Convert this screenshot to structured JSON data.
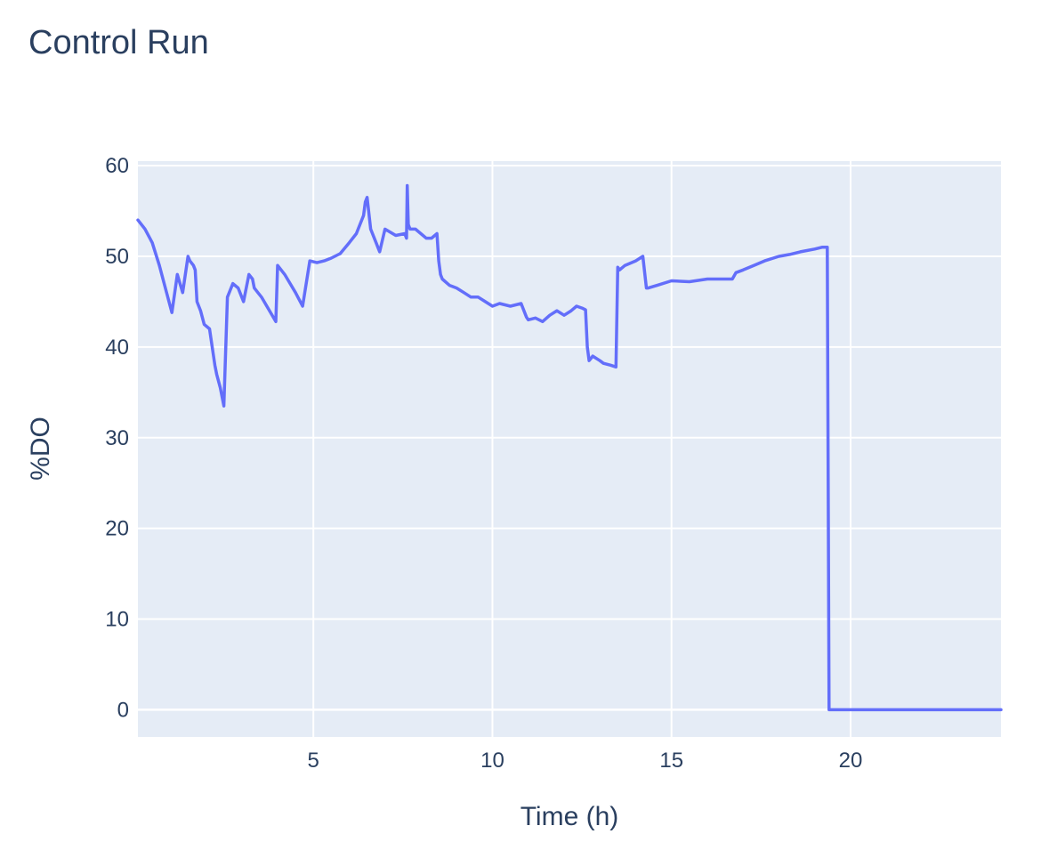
{
  "chart_data": {
    "type": "line",
    "title": "Control Run",
    "xlabel": "Time (h)",
    "ylabel": "%DO",
    "xlim": [
      0.1,
      24.2
    ],
    "ylim": [
      -3,
      60.5
    ],
    "x_ticks": [
      5,
      10,
      15,
      20
    ],
    "y_ticks": [
      0,
      10,
      20,
      30,
      40,
      50,
      60
    ],
    "grid": true,
    "legend": "none",
    "colors": {
      "line": "#636efa",
      "plot_bg": "#e5ecf6",
      "grid": "#ffffff",
      "text": "#2a3f5f"
    },
    "series": [
      {
        "x": [
          0.1,
          0.3,
          0.5,
          0.7,
          0.9,
          1.05,
          1.2,
          1.35,
          1.5,
          1.55,
          1.65,
          1.7,
          1.75,
          1.85,
          1.95,
          2.1,
          2.25,
          2.3,
          2.4,
          2.5,
          2.6,
          2.75,
          2.9,
          2.95,
          3.05,
          3.2,
          3.3,
          3.35,
          3.45,
          3.55,
          3.7,
          3.85,
          3.95,
          4.0,
          4.1,
          4.2,
          4.35,
          4.5,
          4.7,
          4.9,
          5.1,
          5.3,
          5.5,
          5.75,
          6.0,
          6.2,
          6.4,
          6.45,
          6.5,
          6.6,
          6.75,
          6.8,
          6.85,
          7.0,
          7.3,
          7.55,
          7.6,
          7.62,
          7.65,
          7.7,
          7.85,
          8.0,
          8.15,
          8.3,
          8.45,
          8.5,
          8.55,
          8.6,
          8.8,
          9.0,
          9.2,
          9.4,
          9.6,
          9.8,
          10.0,
          10.2,
          10.5,
          10.8,
          10.95,
          11.0,
          11.2,
          11.4,
          11.6,
          11.8,
          12.0,
          12.2,
          12.35,
          12.5,
          12.6,
          12.65,
          12.7,
          12.8,
          13.0,
          13.1,
          13.3,
          13.45,
          13.5,
          13.55,
          13.7,
          14.0,
          14.2,
          14.3,
          14.35,
          14.6,
          15.0,
          15.5,
          16.0,
          16.5,
          16.7,
          16.8,
          17.0,
          17.3,
          17.6,
          18.0,
          18.3,
          18.6,
          19.0,
          19.2,
          19.35,
          19.4,
          24.2
        ],
        "y": [
          54,
          53,
          51.5,
          49,
          46,
          43.8,
          48,
          46,
          50,
          49.5,
          49,
          48.5,
          45,
          44,
          42.5,
          42,
          38,
          37,
          35.5,
          33.5,
          45.5,
          47,
          46.5,
          46,
          45,
          48,
          47.5,
          46.5,
          46,
          45.5,
          44.5,
          43.5,
          42.8,
          49,
          48.5,
          48,
          47,
          46,
          44.5,
          49.5,
          49.3,
          49.5,
          49.8,
          50.3,
          51.5,
          52.5,
          54.5,
          56,
          56.5,
          53,
          51.5,
          51,
          50.5,
          53,
          52.3,
          52.5,
          52,
          57.8,
          53.5,
          53,
          53,
          52.5,
          52,
          52,
          52.5,
          49.5,
          48,
          47.5,
          46.8,
          46.5,
          46,
          45.5,
          45.5,
          45,
          44.5,
          44.8,
          44.5,
          44.8,
          43.3,
          43,
          43.2,
          42.8,
          43.5,
          44,
          43.5,
          44,
          44.5,
          44.3,
          44.1,
          40,
          38.5,
          39,
          38.5,
          38.2,
          38,
          37.8,
          48.8,
          48.5,
          49,
          49.5,
          50,
          46.5,
          46.5,
          46.8,
          47.3,
          47.2,
          47.5,
          47.5,
          47.5,
          48.2,
          48.5,
          49,
          49.5,
          50,
          50.2,
          50.5,
          50.8,
          51,
          51,
          0,
          0
        ]
      }
    ]
  }
}
